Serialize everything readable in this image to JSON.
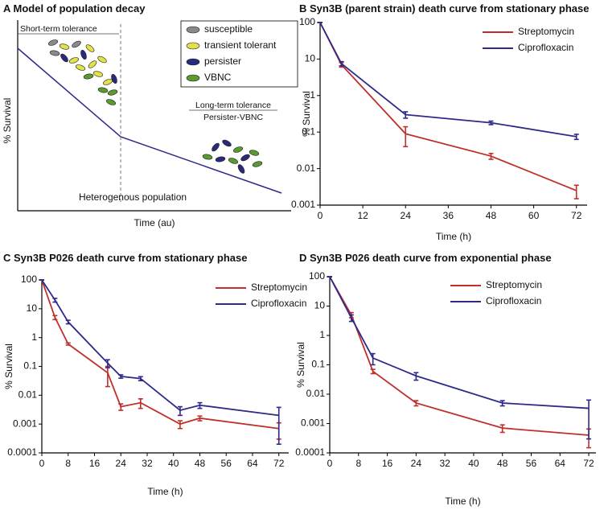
{
  "chart_data": [
    {
      "type": "schematic",
      "label": "A",
      "title": "Model of population decay",
      "xlabel": "Time (au)",
      "ylabel": "% Survival",
      "legend": [
        {
          "name": "susceptible",
          "color": "#8a8a8a"
        },
        {
          "name": "transient tolerant",
          "color": "#e3e14a"
        },
        {
          "name": "persister",
          "color": "#2b2a7a"
        },
        {
          "name": "VBNC",
          "color": "#5a9a2e"
        }
      ],
      "annotations": [
        "Short-term tolerance",
        "Long-term tolerance",
        "Persister-VBNC",
        "Heterogenous population"
      ]
    },
    {
      "type": "line",
      "label": "B",
      "title": "Syn3B (parent strain) death curve from stationary phase",
      "xlabel": "Time (h)",
      "ylabel": "% Survival",
      "log_y": true,
      "xlim": [
        0,
        75
      ],
      "xticks": [
        0,
        12,
        24,
        36,
        48,
        60,
        72
      ],
      "ylim": [
        0.001,
        100
      ],
      "yticks": [
        0.001,
        0.01,
        0.1,
        1,
        10,
        100
      ],
      "series": [
        {
          "name": "Streptomycin",
          "color": "#c0302a",
          "x": [
            0,
            6,
            24,
            48,
            72
          ],
          "values": [
            100,
            7,
            0.09,
            0.022,
            0.0025
          ],
          "errors": [
            0,
            1,
            0.05,
            0.004,
            0.001
          ]
        },
        {
          "name": "Ciprofloxacin",
          "color": "#2e2a8a",
          "x": [
            0,
            6,
            24,
            48,
            72
          ],
          "values": [
            100,
            7.5,
            0.3,
            0.18,
            0.075
          ],
          "errors": [
            0,
            1,
            0.06,
            0.02,
            0.012
          ]
        }
      ]
    },
    {
      "type": "line",
      "label": "C",
      "title": "Syn3B P026 death curve from stationary phase",
      "xlabel": "Time (h)",
      "ylabel": "% Survival",
      "log_y": true,
      "xlim": [
        0,
        75
      ],
      "xticks": [
        0,
        8,
        16,
        24,
        32,
        40,
        48,
        56,
        64,
        72
      ],
      "ylim": [
        0.0001,
        100
      ],
      "yticks": [
        0.0001,
        0.001,
        0.01,
        0.1,
        1,
        10,
        100
      ],
      "series": [
        {
          "name": "Streptomycin",
          "color": "#c0302a",
          "x": [
            0,
            4,
            8,
            20,
            24,
            30,
            42,
            48,
            72
          ],
          "values": [
            100,
            5,
            0.6,
            0.06,
            0.004,
            0.0055,
            0.001,
            0.0016,
            0.0007
          ],
          "errors": [
            0,
            0.8,
            0.05,
            0.04,
            0.001,
            0.002,
            0.0003,
            0.0003,
            0.0004
          ]
        },
        {
          "name": "Ciprofloxacin",
          "color": "#2e2a8a",
          "x": [
            0,
            4,
            8,
            20,
            24,
            30,
            42,
            48,
            72
          ],
          "values": [
            100,
            20,
            3.5,
            0.13,
            0.045,
            0.038,
            0.003,
            0.0045,
            0.002
          ],
          "errors": [
            0,
            3,
            0.5,
            0.04,
            0.006,
            0.006,
            0.001,
            0.001,
            0.0018
          ]
        }
      ]
    },
    {
      "type": "line",
      "label": "D",
      "title": "Syn3B P026 death curve from exponential phase",
      "xlabel": "Time (h)",
      "ylabel": "% Survival",
      "log_y": true,
      "xlim": [
        0,
        74
      ],
      "xticks": [
        0,
        8,
        16,
        24,
        32,
        40,
        48,
        56,
        64,
        72
      ],
      "ylim": [
        0.0001,
        100
      ],
      "yticks": [
        0.0001,
        0.001,
        0.01,
        0.1,
        1,
        10,
        100
      ],
      "series": [
        {
          "name": "Streptomycin",
          "color": "#c0302a",
          "x": [
            0,
            6,
            12,
            24,
            48,
            72
          ],
          "values": [
            100,
            5,
            0.06,
            0.005,
            0.0007,
            0.0004
          ],
          "errors": [
            0,
            1,
            0.01,
            0.001,
            0.0002,
            0.00025
          ]
        },
        {
          "name": "Ciprofloxacin",
          "color": "#2e2a8a",
          "x": [
            0,
            6,
            12,
            24,
            48,
            72
          ],
          "values": [
            100,
            4,
            0.17,
            0.042,
            0.005,
            0.0033
          ],
          "errors": [
            0,
            1,
            0.07,
            0.012,
            0.001,
            0.003
          ]
        }
      ]
    }
  ]
}
